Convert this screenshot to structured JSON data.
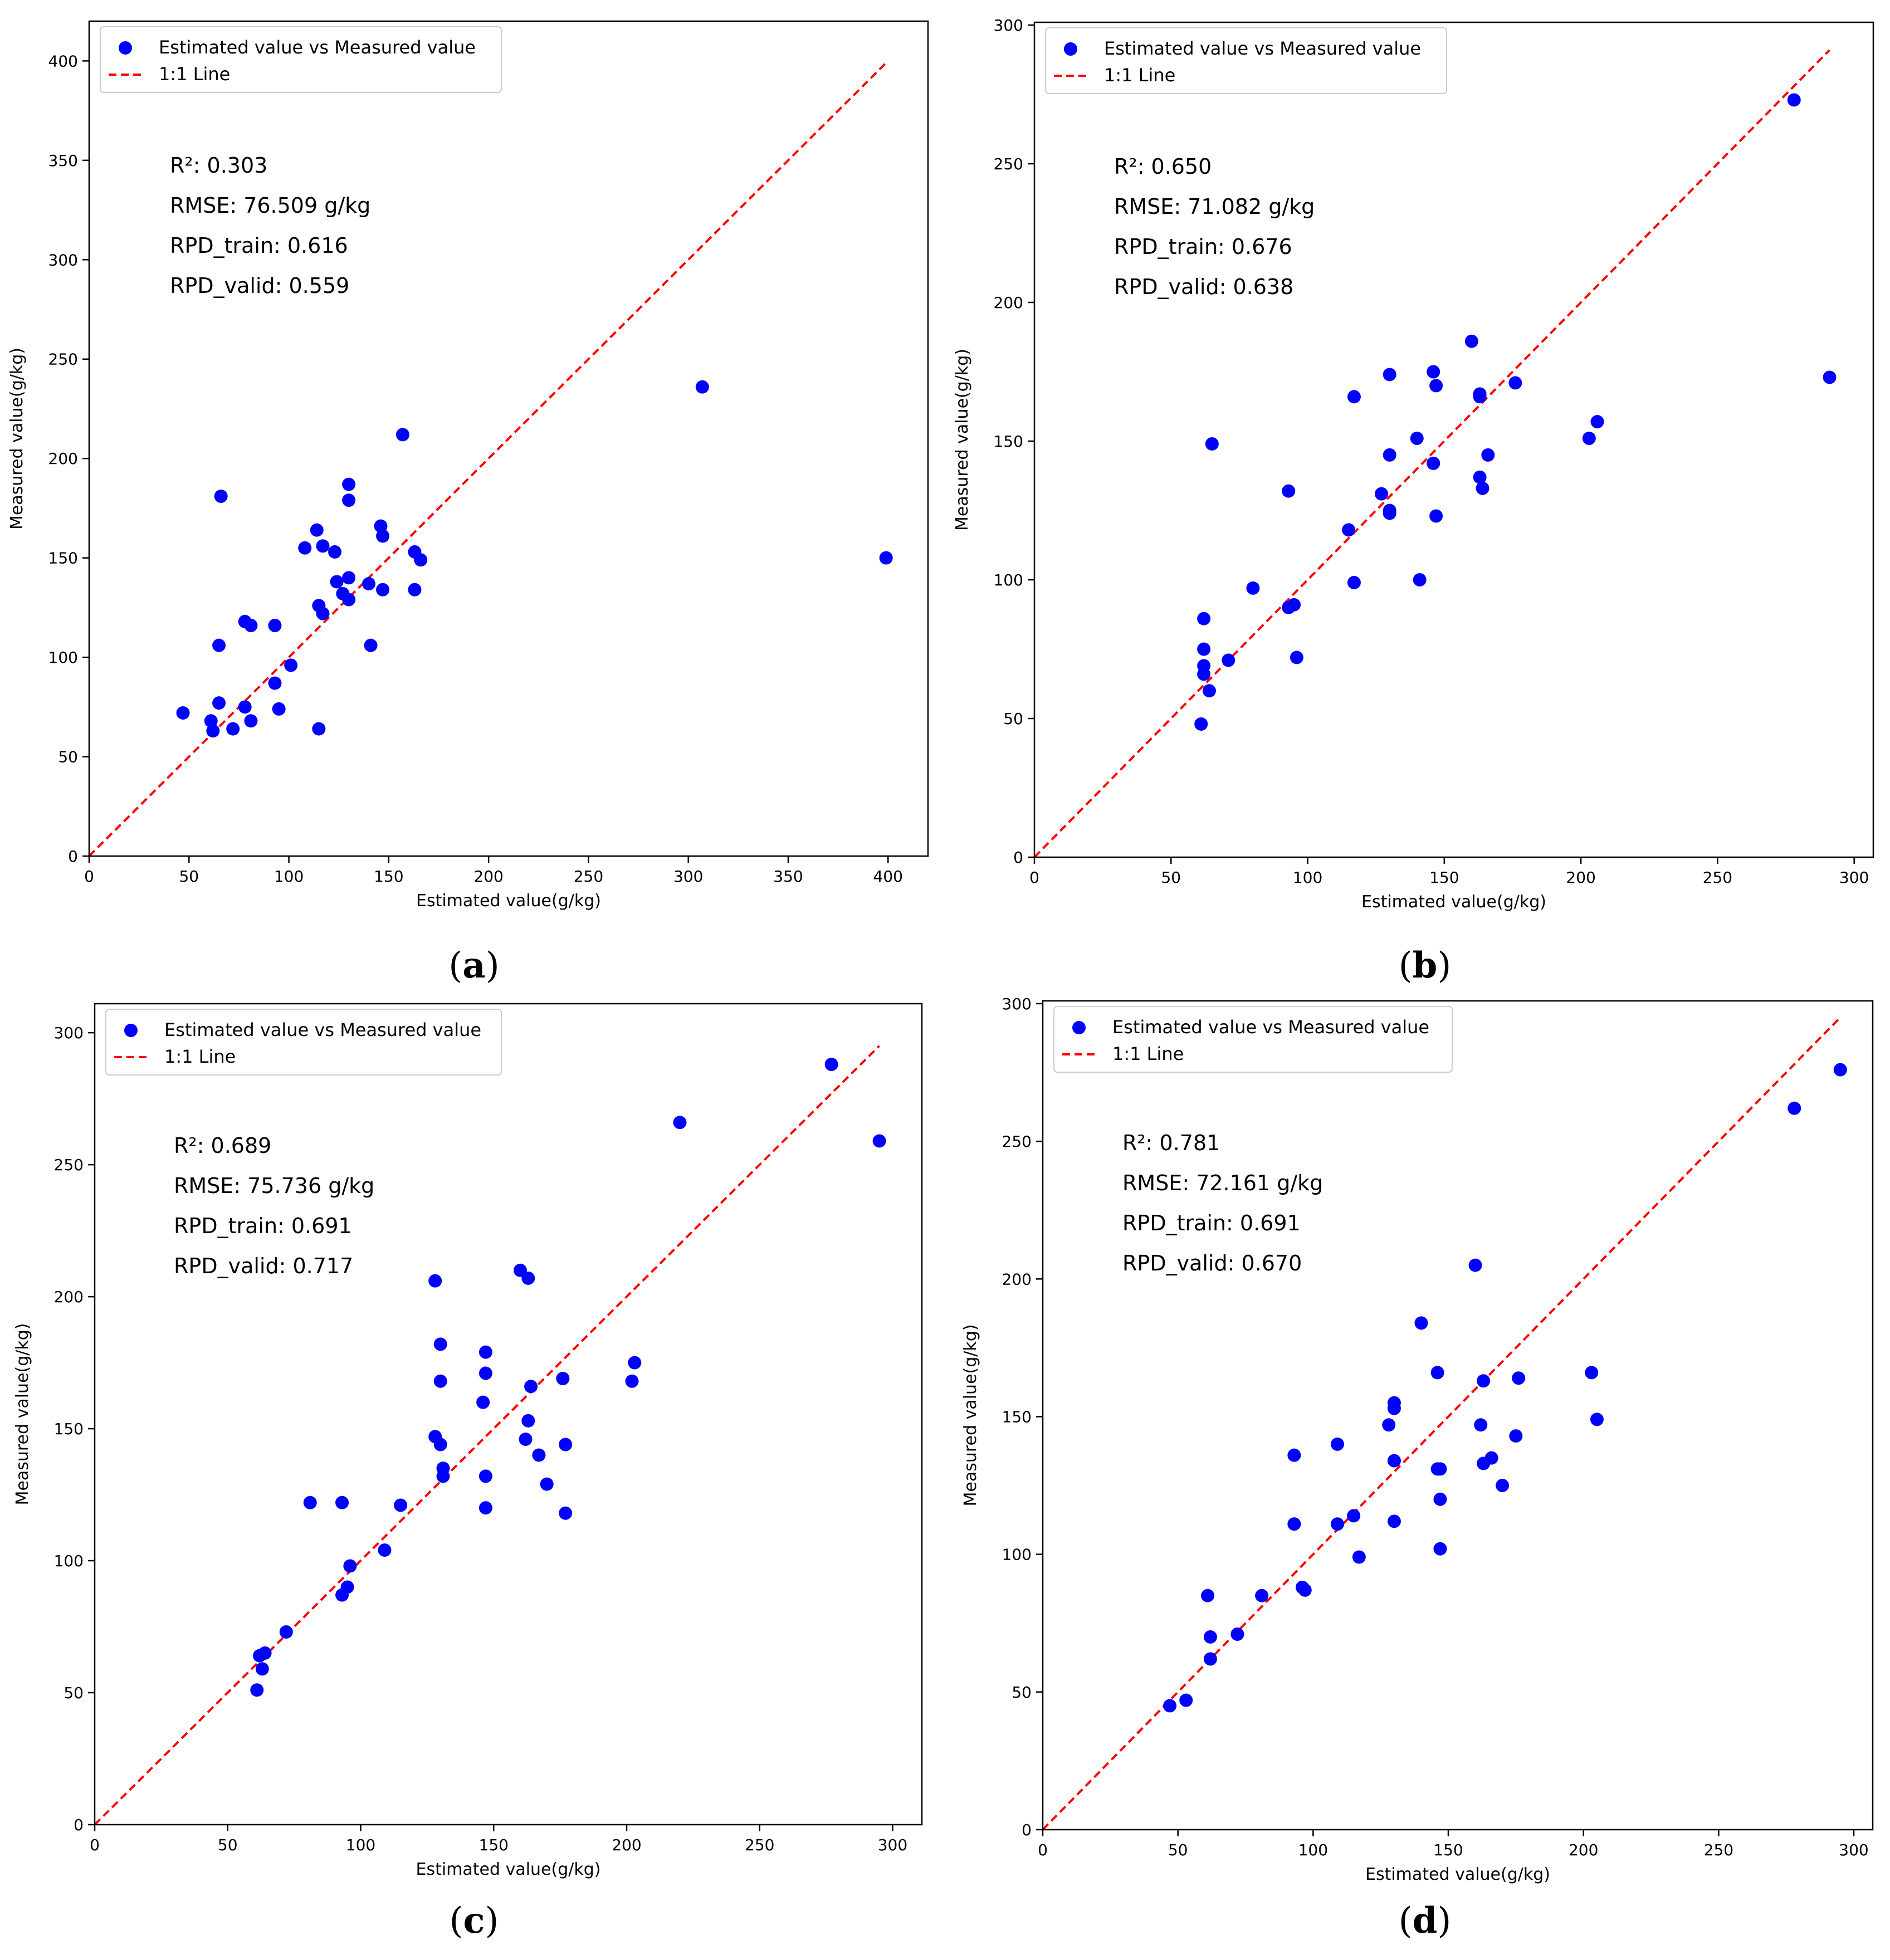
{
  "figure": {
    "colors": {
      "points": "#0000ff",
      "line": "#ff0000",
      "axis": "#000000",
      "legend_border": "#cccccc"
    }
  },
  "chart_data": [
    {
      "type": "scatter",
      "caption": {
        "open": "(",
        "letter": "a",
        "close": ")"
      },
      "xlabel": "Estimated value(g/kg)",
      "ylabel": "Measured value(g/kg)",
      "xlim": [
        0,
        420
      ],
      "ylim": [
        0,
        420
      ],
      "xticks": [
        0,
        50,
        100,
        150,
        200,
        250,
        300,
        350,
        400
      ],
      "yticks": [
        0,
        50,
        100,
        150,
        200,
        250,
        300,
        350,
        400
      ],
      "xtick_labels": [
        "0",
        "50",
        "100",
        "150",
        "200",
        "250",
        "300",
        "350",
        "400"
      ],
      "ytick_labels": [
        "0",
        "50",
        "100",
        "150",
        "200",
        "250",
        "300",
        "350",
        "400"
      ],
      "legend": {
        "location": "upper-left",
        "entries": [
          "Estimated value vs Measured value",
          "1:1 Line"
        ]
      },
      "stats": [
        "R²: 0.303",
        "RMSE: 76.509 g/kg",
        "RPD_train: 0.616",
        "RPD_valid: 0.559"
      ],
      "line": {
        "from": [
          0,
          0
        ],
        "to": [
          400,
          400
        ]
      },
      "points": [
        [
          47,
          72
        ],
        [
          61,
          68
        ],
        [
          62,
          63
        ],
        [
          65,
          77
        ],
        [
          65,
          106
        ],
        [
          66,
          181
        ],
        [
          72,
          64
        ],
        [
          78,
          118
        ],
        [
          78,
          75
        ],
        [
          81,
          116
        ],
        [
          81,
          68
        ],
        [
          93,
          116
        ],
        [
          93,
          87
        ],
        [
          95,
          74
        ],
        [
          101,
          96
        ],
        [
          108,
          155
        ],
        [
          114,
          164
        ],
        [
          115,
          126
        ],
        [
          115,
          64
        ],
        [
          117,
          122
        ],
        [
          117,
          156
        ],
        [
          123,
          153
        ],
        [
          124,
          138
        ],
        [
          127,
          132
        ],
        [
          130,
          187
        ],
        [
          130,
          179
        ],
        [
          130,
          140
        ],
        [
          130,
          129
        ],
        [
          140,
          137
        ],
        [
          141,
          106
        ],
        [
          146,
          166
        ],
        [
          147,
          161
        ],
        [
          147,
          134
        ],
        [
          157,
          212
        ],
        [
          163,
          153
        ],
        [
          163,
          134
        ],
        [
          166,
          149
        ],
        [
          307,
          236
        ],
        [
          399,
          150
        ]
      ]
    },
    {
      "type": "scatter",
      "caption": {
        "open": "(",
        "letter": "b",
        "close": ")"
      },
      "xlabel": "Estimated value(g/kg)",
      "ylabel": "Measured value(g/kg)",
      "xlim": [
        0,
        307
      ],
      "ylim": [
        0,
        301
      ],
      "xticks": [
        0,
        50,
        100,
        150,
        200,
        250,
        300
      ],
      "yticks": [
        0,
        50,
        100,
        150,
        200,
        250,
        300
      ],
      "xtick_labels": [
        "0",
        "50",
        "100",
        "150",
        "200",
        "250",
        "300"
      ],
      "ytick_labels": [
        "0",
        "50",
        "100",
        "150",
        "200",
        "250",
        "300"
      ],
      "legend": {
        "location": "upper-left",
        "entries": [
          "Estimated value vs Measured value",
          "1:1 Line"
        ]
      },
      "stats": [
        "R²: 0.650",
        "RMSE: 71.082 g/kg",
        "RPD_train: 0.676",
        "RPD_valid: 0.638"
      ],
      "line": {
        "from": [
          0,
          0
        ],
        "to": [
          291,
          291
        ]
      },
      "points": [
        [
          61,
          48
        ],
        [
          62,
          86
        ],
        [
          62,
          75
        ],
        [
          62,
          69
        ],
        [
          62,
          66
        ],
        [
          64,
          60
        ],
        [
          65,
          149
        ],
        [
          71,
          71
        ],
        [
          80,
          97
        ],
        [
          93,
          132
        ],
        [
          93,
          90
        ],
        [
          95,
          91
        ],
        [
          96,
          72
        ],
        [
          115,
          118
        ],
        [
          117,
          99
        ],
        [
          117,
          166
        ],
        [
          127,
          131
        ],
        [
          130,
          174
        ],
        [
          130,
          145
        ],
        [
          130,
          125
        ],
        [
          130,
          124
        ],
        [
          140,
          151
        ],
        [
          141,
          100
        ],
        [
          146,
          175
        ],
        [
          146,
          142
        ],
        [
          146,
          142
        ],
        [
          147,
          170
        ],
        [
          147,
          123
        ],
        [
          160,
          186
        ],
        [
          163,
          167
        ],
        [
          163,
          166
        ],
        [
          163,
          137
        ],
        [
          164,
          133
        ],
        [
          166,
          145
        ],
        [
          176,
          171
        ],
        [
          203,
          151
        ],
        [
          206,
          157
        ],
        [
          278,
          273
        ],
        [
          291,
          173
        ]
      ]
    },
    {
      "type": "scatter",
      "caption": {
        "open": "(",
        "letter": "c",
        "close": ")"
      },
      "xlabel": "Estimated value(g/kg)",
      "ylabel": "Measured value(g/kg)",
      "xlim": [
        0,
        311
      ],
      "ylim": [
        0,
        311
      ],
      "xticks": [
        0,
        50,
        100,
        150,
        200,
        250,
        300
      ],
      "yticks": [
        0,
        50,
        100,
        150,
        200,
        250,
        300
      ],
      "xtick_labels": [
        "0",
        "50",
        "100",
        "150",
        "200",
        "250",
        "300"
      ],
      "ytick_labels": [
        "0",
        "50",
        "100",
        "150",
        "200",
        "250",
        "300"
      ],
      "legend": {
        "location": "upper-left",
        "entries": [
          "Estimated value vs Measured value",
          "1:1 Line"
        ]
      },
      "stats": [
        "R²: 0.689",
        "RMSE: 75.736 g/kg",
        "RPD_train: 0.691",
        "RPD_valid: 0.717"
      ],
      "line": {
        "from": [
          0,
          0
        ],
        "to": [
          295,
          295
        ]
      },
      "points": [
        [
          61,
          51
        ],
        [
          62,
          64
        ],
        [
          63,
          59
        ],
        [
          64,
          65
        ],
        [
          72,
          73
        ],
        [
          81,
          122
        ],
        [
          93,
          122
        ],
        [
          93,
          87
        ],
        [
          95,
          90
        ],
        [
          96,
          98
        ],
        [
          109,
          104
        ],
        [
          115,
          121
        ],
        [
          128,
          206
        ],
        [
          128,
          147
        ],
        [
          130,
          168
        ],
        [
          130,
          182
        ],
        [
          130,
          144
        ],
        [
          131,
          135
        ],
        [
          131,
          132
        ],
        [
          146,
          160
        ],
        [
          147,
          171
        ],
        [
          147,
          179
        ],
        [
          147,
          132
        ],
        [
          147,
          120
        ],
        [
          160,
          210
        ],
        [
          162,
          146
        ],
        [
          163,
          207
        ],
        [
          163,
          153
        ],
        [
          164,
          166
        ],
        [
          167,
          140
        ],
        [
          170,
          129
        ],
        [
          176,
          169
        ],
        [
          177,
          144
        ],
        [
          177,
          118
        ],
        [
          202,
          168
        ],
        [
          203,
          175
        ],
        [
          220,
          266
        ],
        [
          277,
          288
        ],
        [
          295,
          259
        ]
      ]
    },
    {
      "type": "scatter",
      "caption": {
        "open": "(",
        "letter": "d",
        "close": ")"
      },
      "xlabel": "Estimated value(g/kg)",
      "ylabel": "Measured value(g/kg)",
      "xlim": [
        0,
        307
      ],
      "ylim": [
        0,
        301
      ],
      "xticks": [
        0,
        50,
        100,
        150,
        200,
        250,
        300
      ],
      "yticks": [
        0,
        50,
        100,
        150,
        200,
        250,
        300
      ],
      "xtick_labels": [
        "0",
        "50",
        "100",
        "150",
        "200",
        "250",
        "300"
      ],
      "ytick_labels": [
        "0",
        "50",
        "100",
        "150",
        "200",
        "250",
        "300"
      ],
      "legend": {
        "location": "upper-left",
        "entries": [
          "Estimated value vs Measured value",
          "1:1 Line"
        ]
      },
      "stats": [
        "R²: 0.781",
        "RMSE: 72.161 g/kg",
        "RPD_train: 0.691",
        "RPD_valid: 0.670"
      ],
      "line": {
        "from": [
          0,
          0
        ],
        "to": [
          295,
          295
        ]
      },
      "points": [
        [
          47,
          45
        ],
        [
          53,
          47
        ],
        [
          61,
          85
        ],
        [
          62,
          70
        ],
        [
          62,
          62
        ],
        [
          72,
          71
        ],
        [
          81,
          85
        ],
        [
          93,
          136
        ],
        [
          93,
          111
        ],
        [
          96,
          88
        ],
        [
          97,
          87
        ],
        [
          109,
          140
        ],
        [
          109,
          111
        ],
        [
          115,
          114
        ],
        [
          117,
          99
        ],
        [
          128,
          147
        ],
        [
          130,
          153
        ],
        [
          130,
          155
        ],
        [
          130,
          134
        ],
        [
          130,
          112
        ],
        [
          140,
          184
        ],
        [
          146,
          166
        ],
        [
          146,
          131
        ],
        [
          147,
          131
        ],
        [
          147,
          120
        ],
        [
          147,
          102
        ],
        [
          160,
          205
        ],
        [
          162,
          147
        ],
        [
          163,
          163
        ],
        [
          163,
          133
        ],
        [
          166,
          135
        ],
        [
          170,
          125
        ],
        [
          175,
          143
        ],
        [
          176,
          164
        ],
        [
          203,
          166
        ],
        [
          205,
          149
        ],
        [
          278,
          262
        ],
        [
          295,
          276
        ]
      ]
    }
  ]
}
